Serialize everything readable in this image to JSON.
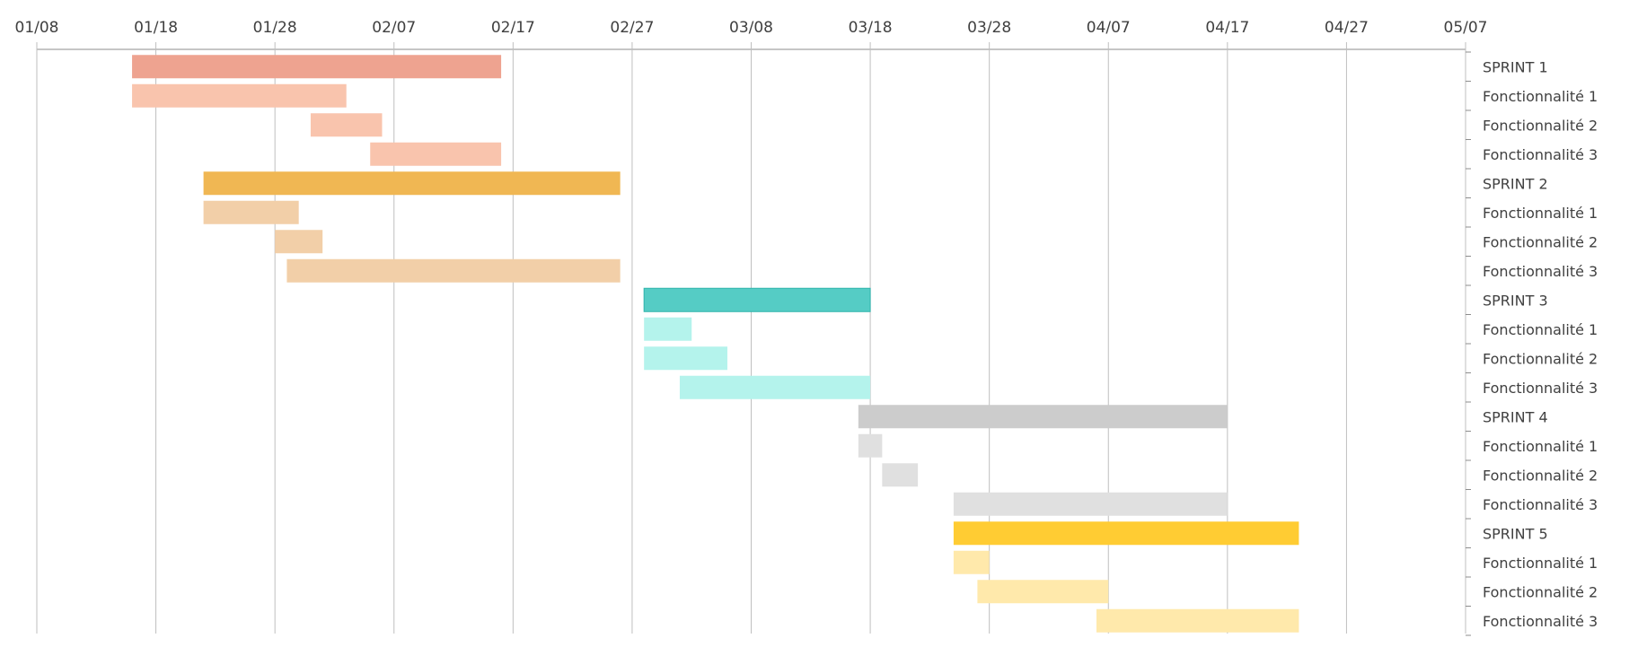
{
  "chart_data": {
    "type": "gantt",
    "title": "",
    "x_axis": {
      "ticks": [
        "01/08",
        "01/18",
        "01/28",
        "02/07",
        "02/17",
        "02/27",
        "03/08",
        "03/18",
        "03/28",
        "04/07",
        "04/17",
        "04/27",
        "05/07"
      ],
      "range": [
        "01/08",
        "05/07"
      ],
      "position": "top",
      "grid": true
    },
    "rows": [
      {
        "label": "SPRINT 1",
        "start": "01/16",
        "end": "02/16",
        "group": 1,
        "kind": "sprint"
      },
      {
        "label": "Fonctionnalité 1",
        "start": "01/16",
        "end": "02/03",
        "group": 1,
        "kind": "feature"
      },
      {
        "label": "Fonctionnalité 2",
        "start": "01/31",
        "end": "02/06",
        "group": 1,
        "kind": "feature"
      },
      {
        "label": "Fonctionnalité 3",
        "start": "02/05",
        "end": "02/16",
        "group": 1,
        "kind": "feature"
      },
      {
        "label": "SPRINT 2",
        "start": "01/22",
        "end": "02/26",
        "group": 2,
        "kind": "sprint"
      },
      {
        "label": "Fonctionnalité 1",
        "start": "01/22",
        "end": "01/30",
        "group": 2,
        "kind": "feature"
      },
      {
        "label": "Fonctionnalité 2",
        "start": "01/28",
        "end": "02/01",
        "group": 2,
        "kind": "feature"
      },
      {
        "label": "Fonctionnalité 3",
        "start": "01/29",
        "end": "02/26",
        "group": 2,
        "kind": "feature"
      },
      {
        "label": "SPRINT 3",
        "start": "02/28",
        "end": "03/18",
        "group": 3,
        "kind": "sprint"
      },
      {
        "label": "Fonctionnalité 1",
        "start": "02/28",
        "end": "03/03",
        "group": 3,
        "kind": "feature"
      },
      {
        "label": "Fonctionnalité 2",
        "start": "02/28",
        "end": "03/06",
        "group": 3,
        "kind": "feature"
      },
      {
        "label": "Fonctionnalité 3",
        "start": "03/02",
        "end": "03/18",
        "group": 3,
        "kind": "feature"
      },
      {
        "label": "SPRINT 4",
        "start": "03/17",
        "end": "04/17",
        "group": 4,
        "kind": "sprint"
      },
      {
        "label": "Fonctionnalité 1",
        "start": "03/17",
        "end": "03/19",
        "group": 4,
        "kind": "feature"
      },
      {
        "label": "Fonctionnalité 2",
        "start": "03/19",
        "end": "03/22",
        "group": 4,
        "kind": "feature"
      },
      {
        "label": "Fonctionnalité 3",
        "start": "03/25",
        "end": "04/17",
        "group": 4,
        "kind": "feature"
      },
      {
        "label": "SPRINT 5",
        "start": "03/25",
        "end": "04/23",
        "group": 5,
        "kind": "sprint"
      },
      {
        "label": "Fonctionnalité 1",
        "start": "03/25",
        "end": "03/28",
        "group": 5,
        "kind": "feature"
      },
      {
        "label": "Fonctionnalité 2",
        "start": "03/27",
        "end": "04/07",
        "group": 5,
        "kind": "feature"
      },
      {
        "label": "Fonctionnalité 3",
        "start": "04/06",
        "end": "04/23",
        "group": 5,
        "kind": "feature"
      }
    ],
    "colors": {
      "1": {
        "sprint": "#eea390",
        "feature": "#f9c4ad"
      },
      "2": {
        "sprint": "#f0b753",
        "feature": "#f2cfa8"
      },
      "3": {
        "sprint": "#55ccc5",
        "feature": "#b4f3ec"
      },
      "4": {
        "sprint": "#cccccc",
        "feature": "#e0e0e0"
      },
      "5": {
        "sprint": "#ffcc33",
        "feature": "#ffe9ab"
      }
    },
    "sprint_stroke": {
      "3": "#2fb3ab"
    }
  }
}
